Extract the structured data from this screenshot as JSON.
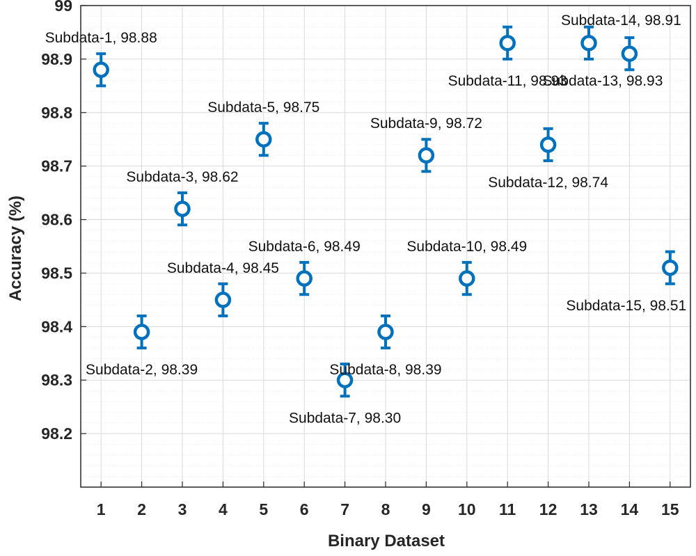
{
  "chart_data": {
    "type": "scatter",
    "title": "",
    "xlabel": "Binary Dataset",
    "ylabel": "Accuracy (%)",
    "xlim": [
      0.5,
      15.5
    ],
    "ylim": [
      98.1,
      99.0
    ],
    "xticks": [
      1,
      2,
      3,
      4,
      5,
      6,
      7,
      8,
      9,
      10,
      11,
      12,
      13,
      14,
      15
    ],
    "xtick_labels": [
      "1",
      "2",
      "3",
      "4",
      "5",
      "6",
      "7",
      "8",
      "9",
      "10",
      "11",
      "12",
      "13",
      "14",
      "15"
    ],
    "yticks": [
      98.2,
      98.3,
      98.4,
      98.5,
      98.6,
      98.7,
      98.8,
      98.9,
      99.0
    ],
    "ytick_labels": [
      "98.2",
      "98.3",
      "98.4",
      "98.5",
      "98.6",
      "98.7",
      "98.8",
      "98.9",
      "99"
    ],
    "grid": true,
    "minor_grid": true,
    "marker": "circle",
    "error_bar_halfwidth": 0.03,
    "colors": {
      "marker": "#0072BD",
      "grid": "#d9d9d9",
      "axis": "#262626"
    },
    "series": [
      {
        "name": "Accuracy",
        "points": [
          {
            "x": 1,
            "y": 98.88,
            "label": "Subdata-1, 98.88",
            "label_pos": "above"
          },
          {
            "x": 2,
            "y": 98.39,
            "label": "Subdata-2, 98.39",
            "label_pos": "below"
          },
          {
            "x": 3,
            "y": 98.62,
            "label": "Subdata-3, 98.62",
            "label_pos": "above"
          },
          {
            "x": 4,
            "y": 98.45,
            "label": "Subdata-4, 98.45",
            "label_pos": "above"
          },
          {
            "x": 5,
            "y": 98.75,
            "label": "Subdata-5, 98.75",
            "label_pos": "above"
          },
          {
            "x": 6,
            "y": 98.49,
            "label": "Subdata-6, 98.49",
            "label_pos": "above"
          },
          {
            "x": 7,
            "y": 98.3,
            "label": "Subdata-7, 98.30",
            "label_pos": "below"
          },
          {
            "x": 8,
            "y": 98.39,
            "label": "Subdata-8, 98.39",
            "label_pos": "below"
          },
          {
            "x": 9,
            "y": 98.72,
            "label": "Subdata-9, 98.72",
            "label_pos": "above"
          },
          {
            "x": 10,
            "y": 98.49,
            "label": "Subdata-10, 98.49",
            "label_pos": "above"
          },
          {
            "x": 11,
            "y": 98.93,
            "label": "Subdata-11, 98.93",
            "label_pos": "below"
          },
          {
            "x": 12,
            "y": 98.74,
            "label": "Subdata-12, 98.74",
            "label_pos": "below"
          },
          {
            "x": 13,
            "y": 98.93,
            "label": "Subdata-13, 98.93",
            "label_pos": "below-right"
          },
          {
            "x": 14,
            "y": 98.91,
            "label": "Subdata-14, 98.91",
            "label_pos": "above-left"
          },
          {
            "x": 15,
            "y": 98.51,
            "label": "Subdata-15, 98.51",
            "label_pos": "below-left"
          }
        ]
      }
    ]
  }
}
